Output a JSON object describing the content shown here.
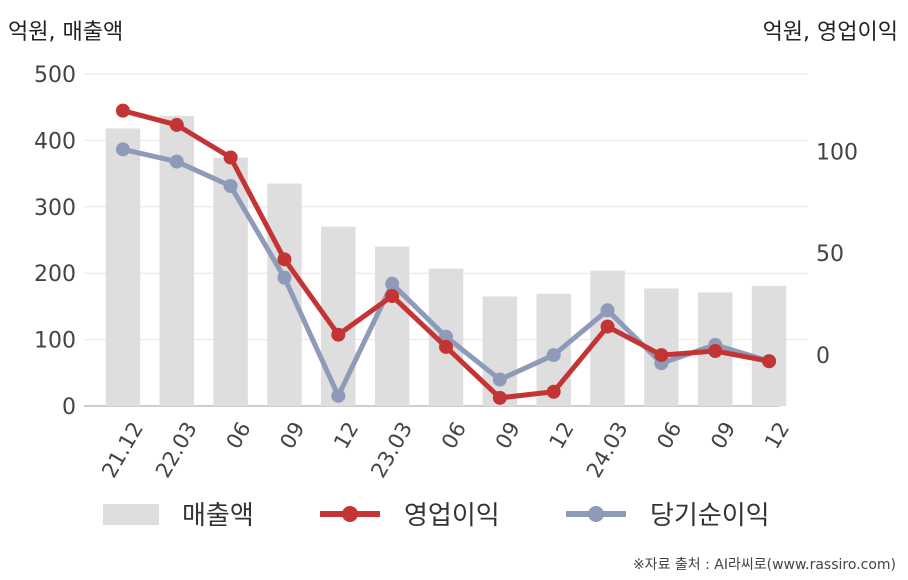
{
  "chart_data": {
    "type": "bar+line",
    "left_axis_label": "억원, 매출액",
    "right_axis_label": "억원, 영업이익",
    "categories": [
      "21.12",
      "22.03",
      "06",
      "09",
      "12",
      "23.03",
      "06",
      "09",
      "12",
      "24.03",
      "06",
      "09",
      "12"
    ],
    "left_ylim": [
      0,
      500
    ],
    "left_ticks": [
      "0",
      "100",
      "200",
      "300",
      "400",
      "500"
    ],
    "right_ylim": [
      -25,
      138
    ],
    "right_ticks": [
      "0",
      "50",
      "100"
    ],
    "series": [
      {
        "name": "매출액",
        "type": "bar",
        "axis": "left",
        "color": "#dedede",
        "values": [
          418,
          437,
          374,
          335,
          270,
          240,
          207,
          165,
          169,
          204,
          177,
          171,
          181
        ]
      },
      {
        "name": "영업이익",
        "type": "line",
        "axis": "right",
        "color": "#c43434",
        "values": [
          120,
          113,
          97,
          47,
          10,
          29,
          4,
          -21,
          -18,
          14,
          0,
          2,
          -3
        ]
      },
      {
        "name": "당기순이익",
        "type": "line",
        "axis": "right",
        "color": "#8d9ab8",
        "values": [
          101,
          95,
          83,
          38,
          -20,
          35,
          9,
          -12,
          0,
          22,
          -4,
          5,
          -3
        ]
      }
    ],
    "legend_position": "bottom",
    "grid": true
  },
  "source": "※자료 출처 : AI라씨로(www.rassiro.com)"
}
